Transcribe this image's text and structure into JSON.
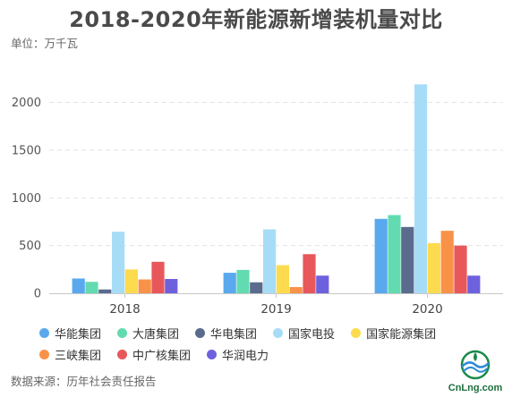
{
  "title": "2018-2020年新能源新增装机量对比",
  "unit_label": "单位：万千瓦",
  "source_label": "数据来源：历年社会责任报告",
  "logo_text": "CnLng.com",
  "chart_data": {
    "type": "bar",
    "title": "2018-2020年新能源新增装机量对比",
    "xlabel": "",
    "ylabel": "单位：万千瓦",
    "ylim": [
      0,
      2300
    ],
    "yticks": [
      0,
      500,
      1000,
      1500,
      2000
    ],
    "ytick_labels": [
      "0",
      "500",
      "1000",
      "1500",
      "2000"
    ],
    "categories": [
      "2018",
      "2019",
      "2020"
    ],
    "grid": true,
    "legend_position": "bottom",
    "series": [
      {
        "name": "华能集团",
        "color": "#5aa9ee",
        "values": [
          155,
          215,
          780
        ]
      },
      {
        "name": "大唐集团",
        "color": "#63dbb0",
        "values": [
          120,
          245,
          820
        ]
      },
      {
        "name": "华电集团",
        "color": "#5b6b8e",
        "values": [
          40,
          115,
          695
        ]
      },
      {
        "name": "国家电投",
        "color": "#a7dcf7",
        "values": [
          645,
          670,
          2190
        ]
      },
      {
        "name": "国家能源集团",
        "color": "#fddb4e",
        "values": [
          250,
          295,
          525
        ]
      },
      {
        "name": "三峡集团",
        "color": "#f99249",
        "values": [
          145,
          65,
          655
        ]
      },
      {
        "name": "中广核集团",
        "color": "#e8585b",
        "values": [
          330,
          410,
          500
        ]
      },
      {
        "name": "华润电力",
        "color": "#6e61de",
        "values": [
          150,
          185,
          185
        ]
      }
    ]
  }
}
